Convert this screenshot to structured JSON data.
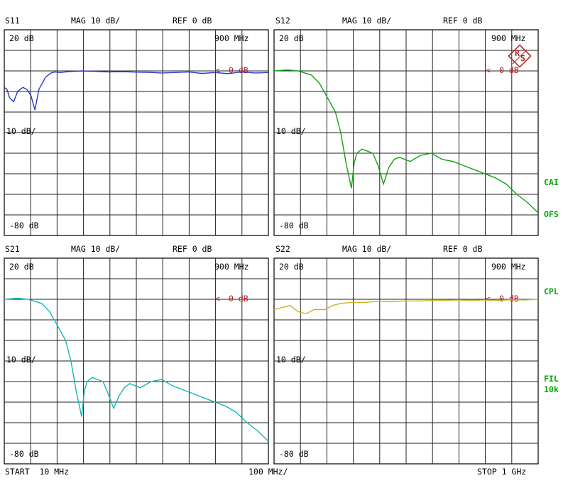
{
  "panels": [
    {
      "id": "s11",
      "param": "S11",
      "mag": "MAG 10 dB/",
      "ref": "REF 0 dB",
      "top_label": "20 dB",
      "freq_label": "900 MHz",
      "mid_label": "10 dB/",
      "bottom_label": "-80 dB",
      "marker_label": "0 dB",
      "trace_color": "#2a34c8"
    },
    {
      "id": "s12",
      "param": "S12",
      "mag": "MAG 10 dB/",
      "ref": "REF 0 dB",
      "top_label": "20 dB",
      "freq_label": "900 MHz",
      "mid_label": "10 dB/",
      "bottom_label": "-80 dB",
      "marker_label": "0 dB",
      "trace_color": "#12a012"
    },
    {
      "id": "s21",
      "param": "S21",
      "mag": "MAG 10 dB/",
      "ref": "REF 0 dB",
      "top_label": "20 dB",
      "freq_label": "900 MHz",
      "mid_label": "10 dB/",
      "bottom_label": "-80 dB",
      "marker_label": "0 dB",
      "trace_color": "#18b4b4"
    },
    {
      "id": "s22",
      "param": "S22",
      "mag": "MAG 10 dB/",
      "ref": "REF 0 dB",
      "top_label": "20 dB",
      "freq_label": "900 MHz",
      "mid_label": "10 dB/",
      "bottom_label": "-80 dB",
      "marker_label": "0 dB",
      "trace_color": "#c8b420"
    }
  ],
  "side_labels": {
    "cal": "CAI",
    "ofs": "OFS",
    "cpl": "CPL",
    "fil": "FIL",
    "fil_value": "10k"
  },
  "footer": {
    "start": "START  10 MHz",
    "scale": "100 MHz/",
    "stop": "STOP 1 GHz"
  },
  "colors": {
    "logo": "#b02020",
    "side_text": "#00aa00",
    "marker": "#b02020"
  },
  "logo_icon": "rohde-schwarz-diamond-logo",
  "chart_data": [
    {
      "type": "line",
      "name": "S11",
      "ylim": [
        -80,
        20
      ],
      "xlim": [
        10,
        1000
      ],
      "x": [
        10,
        20,
        30,
        45,
        60,
        80,
        95,
        110,
        125,
        140,
        165,
        175,
        185,
        200,
        220,
        250,
        300,
        350,
        400,
        450,
        500,
        550,
        600,
        650,
        700,
        750,
        800,
        850,
        900,
        950,
        1000
      ],
      "y": [
        -8,
        -9,
        -13,
        -15,
        -10,
        -8,
        -9,
        -12,
        -19,
        -9,
        -3,
        -2,
        -1,
        -0.5,
        -0.8,
        -0.3,
        0,
        -0.2,
        -0.5,
        -0.3,
        -0.6,
        -0.7,
        -1,
        -0.8,
        -0.5,
        -1.2,
        -0.8,
        -1.3,
        -0.5,
        -1,
        -0.8
      ]
    },
    {
      "type": "line",
      "name": "S12",
      "ylim": [
        -80,
        20
      ],
      "xlim": [
        10,
        1000
      ],
      "x": [
        10,
        60,
        100,
        150,
        180,
        210,
        240,
        260,
        280,
        300,
        310,
        320,
        340,
        380,
        400,
        420,
        440,
        460,
        480,
        520,
        560,
        600,
        640,
        680,
        720,
        760,
        800,
        840,
        880,
        920,
        960,
        1000
      ],
      "y": [
        0,
        0.5,
        0,
        -2,
        -6,
        -13,
        -20,
        -30,
        -45,
        -57,
        -45,
        -40,
        -38,
        -40,
        -46,
        -55,
        -47,
        -43,
        -42,
        -44,
        -41,
        -40,
        -43,
        -44,
        -46,
        -48,
        -50,
        -52,
        -55,
        -60,
        -64,
        -69
      ]
    },
    {
      "type": "line",
      "name": "S21",
      "ylim": [
        -80,
        20
      ],
      "xlim": [
        10,
        1000
      ],
      "x": [
        10,
        60,
        100,
        150,
        180,
        210,
        240,
        260,
        280,
        300,
        310,
        320,
        340,
        380,
        400,
        420,
        440,
        460,
        480,
        520,
        560,
        600,
        640,
        680,
        720,
        760,
        800,
        840,
        880,
        920,
        960,
        1000
      ],
      "y": [
        0,
        0.5,
        0,
        -2,
        -6,
        -13,
        -20,
        -30,
        -45,
        -57,
        -45,
        -40,
        -38,
        -40,
        -46,
        -53,
        -47,
        -43,
        -41,
        -43,
        -40,
        -39,
        -42,
        -44,
        -46,
        -48,
        -50,
        -52,
        -55,
        -60,
        -64,
        -69
      ]
    },
    {
      "type": "line",
      "name": "S22",
      "ylim": [
        -80,
        20
      ],
      "xlim": [
        10,
        1000
      ],
      "x": [
        10,
        40,
        70,
        100,
        130,
        160,
        200,
        230,
        260,
        300,
        350,
        400,
        450,
        500,
        550,
        600,
        650,
        700,
        750,
        800,
        850,
        900,
        950,
        1000
      ],
      "y": [
        -5,
        -4,
        -3,
        -6,
        -7,
        -5,
        -5,
        -3,
        -2,
        -1.5,
        -1.5,
        -1,
        -1.2,
        -0.8,
        -0.8,
        -0.6,
        -0.5,
        -0.3,
        -0.5,
        -0.3,
        -0.5,
        -0.2,
        -0.3,
        0
      ]
    }
  ]
}
